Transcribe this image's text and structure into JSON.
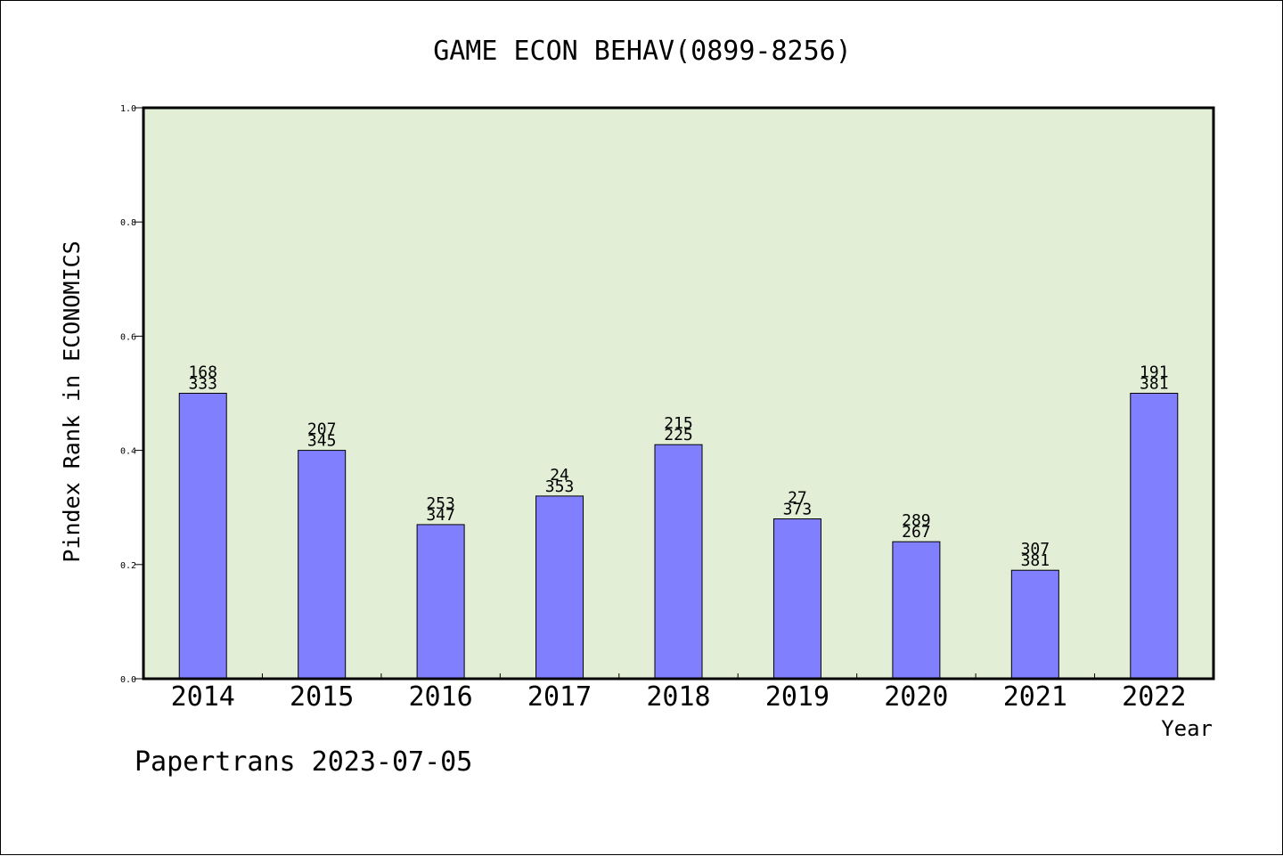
{
  "colors": {
    "plot_background": "#e2efd6",
    "bar_fill": "#8080ff",
    "bar_stroke": "#000000",
    "axis": "#000000"
  },
  "footer": "Papertrans 2023-07-05",
  "chart_data": {
    "type": "bar",
    "title": "GAME ECON BEHAV(0899-8256)",
    "xlabel": "Year",
    "ylabel": "Pindex Rank in ECONOMICS",
    "ylim": [
      0,
      1.0
    ],
    "yticks": [
      "0.0",
      "0.2",
      "0.4",
      "0.6",
      "0.8",
      "1.0"
    ],
    "grid": false,
    "categories": [
      "2014",
      "2015",
      "2016",
      "2017",
      "2018",
      "2019",
      "2020",
      "2021",
      "2022"
    ],
    "values": [
      0.5,
      0.4,
      0.27,
      0.32,
      0.41,
      0.28,
      0.24,
      0.19,
      0.5
    ],
    "label_top": [
      "168",
      "207",
      "253",
      "24",
      "215",
      "27",
      "289",
      "307",
      "191"
    ],
    "label_bottom": [
      "333",
      "345",
      "347",
      "353",
      "225",
      "373",
      "267",
      "381",
      "381"
    ]
  }
}
